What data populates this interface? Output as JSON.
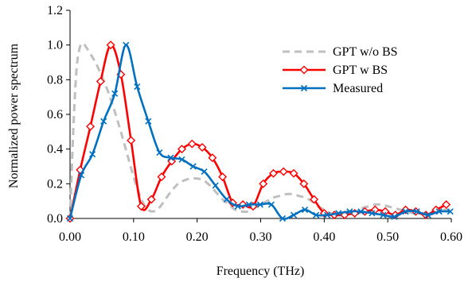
{
  "chart_data": {
    "type": "line",
    "title": "",
    "xlabel": "Frequency (THz)",
    "ylabel": "Normalized power spectrum",
    "xlim": [
      0,
      0.6
    ],
    "ylim": [
      0,
      1.2
    ],
    "xticks": [
      "0.00",
      "0.10",
      "0.20",
      "0.30",
      "0.40",
      "0.50",
      "0.60"
    ],
    "yticks": [
      "0.0",
      "0.2",
      "0.4",
      "0.6",
      "0.8",
      "1.0",
      "1.2"
    ],
    "grid": false,
    "legend_position": "top-right",
    "series": [
      {
        "name": "GPT w/o BS",
        "color": "#bfbfbf",
        "dash": "dashed",
        "marker": "none",
        "x": [
          0.0,
          0.005,
          0.01,
          0.015,
          0.02,
          0.025,
          0.03,
          0.04,
          0.05,
          0.06,
          0.07,
          0.08,
          0.09,
          0.1,
          0.11,
          0.12,
          0.13,
          0.14,
          0.15,
          0.16,
          0.17,
          0.18,
          0.19,
          0.2,
          0.21,
          0.22,
          0.23,
          0.24,
          0.25,
          0.26,
          0.27,
          0.28,
          0.29,
          0.3,
          0.31,
          0.32,
          0.33,
          0.34,
          0.35,
          0.36,
          0.37,
          0.38,
          0.39,
          0.4,
          0.41,
          0.42,
          0.43,
          0.44,
          0.45,
          0.46,
          0.47,
          0.48,
          0.49,
          0.5,
          0.51,
          0.52,
          0.53,
          0.54,
          0.55,
          0.56,
          0.57,
          0.58,
          0.59,
          0.6
        ],
        "y": [
          0.0,
          0.5,
          0.85,
          0.98,
          1.01,
          0.99,
          0.96,
          0.9,
          0.82,
          0.73,
          0.62,
          0.5,
          0.37,
          0.24,
          0.13,
          0.06,
          0.04,
          0.06,
          0.11,
          0.16,
          0.2,
          0.22,
          0.23,
          0.23,
          0.22,
          0.19,
          0.15,
          0.11,
          0.08,
          0.05,
          0.04,
          0.04,
          0.06,
          0.08,
          0.1,
          0.12,
          0.13,
          0.14,
          0.14,
          0.13,
          0.12,
          0.1,
          0.07,
          0.05,
          0.03,
          0.02,
          0.02,
          0.03,
          0.04,
          0.06,
          0.07,
          0.08,
          0.08,
          0.07,
          0.06,
          0.05,
          0.04,
          0.03,
          0.03,
          0.03,
          0.04,
          0.05,
          0.05,
          0.05
        ]
      },
      {
        "name": "GPT w BS",
        "color": "#ff0000",
        "dash": "solid",
        "marker": "diamond",
        "x": [
          0.0,
          0.016,
          0.032,
          0.048,
          0.064,
          0.08,
          0.096,
          0.112,
          0.128,
          0.144,
          0.16,
          0.176,
          0.192,
          0.208,
          0.224,
          0.24,
          0.256,
          0.272,
          0.288,
          0.304,
          0.32,
          0.336,
          0.352,
          0.368,
          0.384,
          0.4,
          0.416,
          0.432,
          0.448,
          0.464,
          0.48,
          0.496,
          0.512,
          0.528,
          0.544,
          0.56,
          0.576,
          0.592
        ],
        "y": [
          0.0,
          0.28,
          0.53,
          0.79,
          1.0,
          0.83,
          0.45,
          0.07,
          0.11,
          0.24,
          0.33,
          0.4,
          0.43,
          0.41,
          0.35,
          0.24,
          0.09,
          0.08,
          0.07,
          0.2,
          0.26,
          0.27,
          0.26,
          0.2,
          0.11,
          0.03,
          0.02,
          0.02,
          0.03,
          0.04,
          0.05,
          0.04,
          0.02,
          0.05,
          0.04,
          0.02,
          0.05,
          0.08
        ]
      },
      {
        "name": "Measured",
        "color": "#0070c0",
        "dash": "solid",
        "marker": "x",
        "x": [
          0.0,
          0.0176,
          0.0352,
          0.0528,
          0.0704,
          0.088,
          0.1056,
          0.1232,
          0.1408,
          0.1584,
          0.176,
          0.1936,
          0.2112,
          0.2288,
          0.2464,
          0.264,
          0.2816,
          0.2992,
          0.3168,
          0.3344,
          0.352,
          0.3696,
          0.3872,
          0.4048,
          0.4224,
          0.44,
          0.4576,
          0.4752,
          0.4928,
          0.5104,
          0.528,
          0.5456,
          0.5632,
          0.5808,
          0.5984
        ],
        "y": [
          0.0,
          0.25,
          0.37,
          0.56,
          0.72,
          1.0,
          0.76,
          0.56,
          0.38,
          0.35,
          0.34,
          0.3,
          0.27,
          0.19,
          0.11,
          0.07,
          0.08,
          0.08,
          0.08,
          0.0,
          0.02,
          0.05,
          0.02,
          0.02,
          0.03,
          0.04,
          0.04,
          0.03,
          0.02,
          0.01,
          0.04,
          0.04,
          0.02,
          0.04,
          0.04
        ]
      }
    ]
  }
}
